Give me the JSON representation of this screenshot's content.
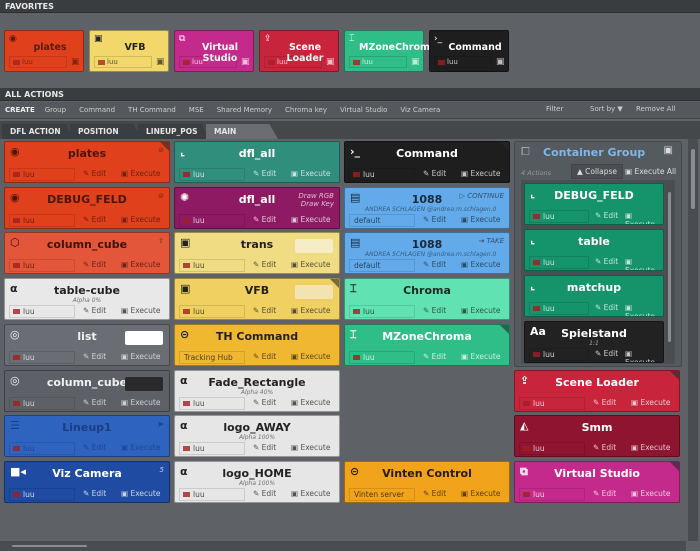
{
  "favorites": {
    "title": "FAVORITES",
    "items": [
      {
        "name": "plates",
        "icon": "eye-icon",
        "glyph": "◉",
        "bg": "#e0401c",
        "fg": "#5a1b0a",
        "channel": "luu"
      },
      {
        "name": "VFB",
        "icon": "image-icon",
        "glyph": "▣",
        "bg": "#f2d86a",
        "fg": "#222",
        "channel": "luu"
      },
      {
        "name": "Virtual Studio",
        "icon": "virtual-studio-icon",
        "glyph": "⧉",
        "bg": "#c42a8c",
        "fg": "#fff",
        "channel": "luu"
      },
      {
        "name": "Scene Loader",
        "icon": "scene-loader-icon",
        "glyph": "⇪",
        "bg": "#c8243c",
        "fg": "#fff",
        "channel": "luu"
      },
      {
        "name": "MZoneChroma",
        "icon": "chroma-icon",
        "glyph": "⌶",
        "bg": "#2fbd88",
        "fg": "#fff",
        "channel": "luu"
      },
      {
        "name": "Command",
        "icon": "terminal-icon",
        "glyph": "›_",
        "bg": "#1e1e1e",
        "fg": "#fff",
        "channel": "luu"
      }
    ]
  },
  "all_actions": {
    "title": "ALL ACTIONS"
  },
  "toolbar": {
    "create_label": "CREATE",
    "buttons": [
      "Group",
      "Command",
      "TH Command",
      "MSE",
      "Shared Memory",
      "Chroma key",
      "Virtual Studio",
      "Viz Camera"
    ],
    "filter": "Filter",
    "sort": "Sort by ▼",
    "remove": "Remove All"
  },
  "tabs": [
    {
      "label": "DFL ACTION"
    },
    {
      "label": "POSITION"
    },
    {
      "label": "LINEUP_POS"
    },
    {
      "label": "MAIN",
      "active": true
    }
  ],
  "labels": {
    "edit": "✎ Edit",
    "execute": "▣ Execute"
  },
  "columns": [
    [
      {
        "name": "plates",
        "glyph": "◉",
        "icon": "eye-icon",
        "bg": "#e0401c",
        "fg": "#4a1608",
        "channel": "luu",
        "right": "⊘",
        "corner": true
      },
      {
        "name": "DEBUG_FELD",
        "glyph": "◉",
        "icon": "eye-icon",
        "bg": "#e0401c",
        "fg": "#4a1608",
        "channel": "luu",
        "right": "⊘"
      },
      {
        "name": "column_cube",
        "glyph": "⬡",
        "icon": "cube-icon",
        "bg": "#e4563a",
        "fg": "#3a1208",
        "channel": "luu",
        "right": "⇧"
      },
      {
        "name": "table-cube",
        "glyph": "α",
        "icon": "alpha-icon",
        "bg": "#e8e8e8",
        "fg": "#222",
        "channel": "luu",
        "sub": "Alpha 0%"
      },
      {
        "name": "list",
        "glyph": "◎",
        "icon": "target-icon",
        "bg": "#6a6e74",
        "fg": "#f2f2f2",
        "channel": "luu",
        "swatch": "#ffffff"
      },
      {
        "name": "column_cube",
        "glyph": "◎",
        "icon": "target-icon",
        "bg": "#5d6167",
        "fg": "#f2f2f2",
        "channel": "luu",
        "swatch": "#2a2a2a"
      },
      {
        "name": "Lineup1",
        "glyph": "☰",
        "icon": "lineup-icon",
        "bg": "#2f63c0",
        "fg": "#1c3d80",
        "channel": "luu",
        "right": "▶"
      },
      {
        "name": "Viz Camera",
        "glyph": "■◂",
        "icon": "camera-icon",
        "bg": "#1f4ba3",
        "fg": "#fff",
        "channel": "luu",
        "right": "5"
      }
    ],
    [
      {
        "name": "dfl_all",
        "glyph": "⌞",
        "icon": "axis-icon",
        "bg": "#2f8f7c",
        "fg": "#fff",
        "channel": "luu"
      },
      {
        "name": "dfl_all",
        "glyph": "✺",
        "icon": "light-icon",
        "bg": "#8d1a62",
        "fg": "#fff",
        "channel": "luu",
        "right": "Draw RGB\nDraw Key"
      },
      {
        "name": "trans",
        "glyph": "▣",
        "icon": "image-icon",
        "bg": "#f0dc82",
        "fg": "#222",
        "channel": "luu",
        "swatch": "#f6ecc6"
      },
      {
        "name": "VFB",
        "glyph": "▣",
        "icon": "image-icon",
        "bg": "#f0d060",
        "fg": "#222",
        "channel": "luu",
        "swatch": "#f3e3b0",
        "corner": true
      },
      {
        "name": "TH Command",
        "glyph": "⊝",
        "icon": "tracking-hub-icon",
        "bg": "#f0b830",
        "fg": "#222",
        "channel": "Tracking Hub",
        "nomon": true
      },
      {
        "name": "Fade_Rectangle",
        "glyph": "α",
        "icon": "alpha-icon",
        "bg": "#e6e6e6",
        "fg": "#222",
        "channel": "luu",
        "sub": "Alpha 40%"
      },
      {
        "name": "logo_AWAY",
        "glyph": "α",
        "icon": "alpha-icon",
        "bg": "#e6e6e6",
        "fg": "#222",
        "channel": "luu",
        "sub": "Alpha 100%"
      },
      {
        "name": "logo_HOME",
        "glyph": "α",
        "icon": "alpha-icon",
        "bg": "#e6e6e6",
        "fg": "#222",
        "channel": "luu",
        "sub": "Alpha 100%"
      }
    ],
    [
      {
        "name": "Command",
        "glyph": "›_",
        "icon": "terminal-icon",
        "bg": "#1e1e1e",
        "fg": "#fff",
        "channel": "luu",
        "corner": true
      },
      {
        "name": "1088",
        "glyph": "▤",
        "icon": "mse-icon",
        "bg": "#62aaea",
        "fg": "#1a2a3a",
        "channel": "default",
        "nomon": true,
        "sub": "ANDREA SCHLAGEN @andrea.m.schlagen.0",
        "right": "▷ CONTINUE"
      },
      {
        "name": "1088",
        "glyph": "▤",
        "icon": "mse-icon",
        "bg": "#62aaea",
        "fg": "#1a2a3a",
        "channel": "default",
        "nomon": true,
        "sub": "ANDREA SCHLAGEN @andrea.m.schlagen.0",
        "right": "⇥ TAKE"
      },
      {
        "name": "Chroma",
        "glyph": "⌶",
        "icon": "chroma-icon",
        "bg": "#60e2b2",
        "fg": "#1a2a24",
        "channel": "luu"
      },
      {
        "name": "MZoneChroma",
        "glyph": "⌶",
        "icon": "chroma-icon",
        "bg": "#2fbd88",
        "fg": "#fff",
        "channel": "luu",
        "corner": true
      },
      null,
      null,
      {
        "name": "Vinten Control",
        "glyph": "⊝",
        "icon": "vinten-icon",
        "bg": "#f2a31c",
        "fg": "#2a1a00",
        "channel": "Vinten server",
        "nomon": true
      }
    ],
    [
      null,
      null,
      null,
      null,
      null,
      {
        "name": "Scene Loader",
        "glyph": "⇪",
        "icon": "scene-loader-icon",
        "bg": "#c8243c",
        "fg": "#fff",
        "channel": "luu",
        "corner": true
      },
      {
        "name": "Smm",
        "glyph": "◭",
        "icon": "smm-icon",
        "bg": "#8e1430",
        "fg": "#fff",
        "channel": "luu"
      },
      {
        "name": "Virtual Studio",
        "glyph": "⧉",
        "icon": "virtual-studio-icon",
        "bg": "#c42a8c",
        "fg": "#fff",
        "channel": "luu",
        "corner": true
      }
    ]
  ],
  "group": {
    "title": "Container Group",
    "count": "4 Actions",
    "collapse": "▲ Collapse",
    "execute_all": "▣ Execute All",
    "items": [
      {
        "name": "DEBUG_FELD",
        "glyph": "⌞",
        "icon": "axis-icon",
        "bg": "#15936a",
        "fg": "#fff",
        "channel": "luu"
      },
      {
        "name": "table",
        "glyph": "⌞",
        "icon": "axis-icon",
        "bg": "#15936a",
        "fg": "#fff",
        "channel": "luu"
      },
      {
        "name": "matchup",
        "glyph": "⌞",
        "icon": "axis-icon",
        "bg": "#15936a",
        "fg": "#fff",
        "channel": "luu"
      },
      {
        "name": "Spielstand",
        "glyph": "Aa",
        "icon": "text-icon",
        "bg": "#222222",
        "fg": "#fff",
        "channel": "luu",
        "sub": "1:1"
      }
    ]
  }
}
